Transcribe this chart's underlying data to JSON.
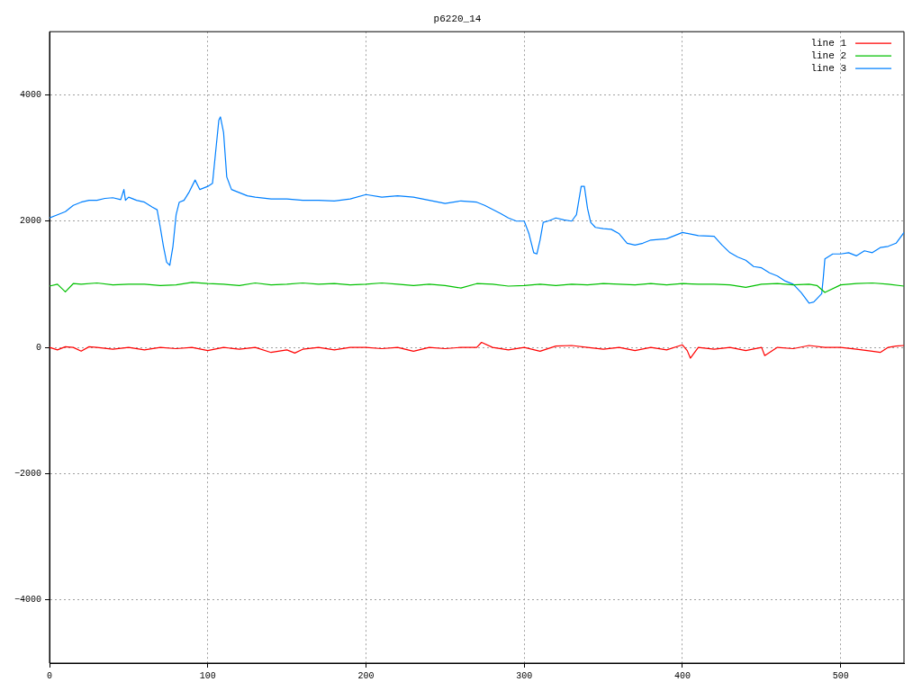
{
  "chart_data": {
    "type": "line",
    "title": "p6220_14",
    "xlim": [
      0,
      540
    ],
    "xticks": [
      0,
      100,
      200,
      300,
      400,
      500
    ],
    "ylim": [
      -5000,
      5000
    ],
    "yticks": [
      -4000,
      -2000,
      0,
      2000,
      4000
    ],
    "grid": true,
    "legend": "top right",
    "marker": "none",
    "line_style": "solid",
    "series": [
      {
        "name": "line 1",
        "color": "#ff0000",
        "x": [
          0,
          5,
          10,
          15,
          20,
          25,
          30,
          40,
          50,
          60,
          70,
          80,
          90,
          100,
          110,
          120,
          130,
          140,
          150,
          155,
          160,
          170,
          180,
          190,
          200,
          210,
          220,
          230,
          240,
          250,
          260,
          270,
          273,
          280,
          290,
          300,
          310,
          320,
          330,
          340,
          350,
          360,
          370,
          380,
          390,
          400,
          403,
          405,
          410,
          420,
          430,
          440,
          450,
          452,
          460,
          470,
          480,
          490,
          500,
          510,
          520,
          525,
          530,
          535,
          540
        ],
        "values": [
          0,
          -40,
          10,
          0,
          -60,
          10,
          0,
          -30,
          0,
          -40,
          0,
          -20,
          0,
          -50,
          0,
          -30,
          0,
          -80,
          -40,
          -90,
          -30,
          0,
          -40,
          0,
          0,
          -20,
          0,
          -60,
          0,
          -20,
          0,
          0,
          80,
          0,
          -40,
          0,
          -60,
          20,
          30,
          0,
          -30,
          0,
          -50,
          0,
          -40,
          40,
          -50,
          -170,
          0,
          -30,
          0,
          -50,
          0,
          -130,
          0,
          -20,
          30,
          0,
          0,
          -30,
          -60,
          -80,
          0,
          20,
          30
        ]
      },
      {
        "name": "line 2",
        "color": "#00c000",
        "x": [
          0,
          5,
          10,
          15,
          20,
          30,
          40,
          50,
          60,
          70,
          80,
          90,
          100,
          110,
          120,
          130,
          140,
          150,
          160,
          170,
          180,
          190,
          200,
          210,
          220,
          230,
          240,
          250,
          260,
          270,
          280,
          290,
          300,
          310,
          320,
          330,
          340,
          350,
          360,
          370,
          380,
          390,
          400,
          410,
          420,
          430,
          440,
          450,
          460,
          470,
          480,
          485,
          490,
          500,
          510,
          520,
          530,
          540
        ],
        "values": [
          970,
          1000,
          880,
          1010,
          1000,
          1020,
          990,
          1000,
          1000,
          980,
          990,
          1030,
          1010,
          1000,
          980,
          1020,
          990,
          1000,
          1020,
          1000,
          1010,
          990,
          1000,
          1020,
          1000,
          980,
          1000,
          980,
          940,
          1010,
          1000,
          970,
          980,
          1000,
          980,
          1000,
          990,
          1010,
          1000,
          990,
          1010,
          990,
          1010,
          1000,
          1000,
          990,
          950,
          1000,
          1010,
          990,
          1000,
          980,
          870,
          990,
          1010,
          1020,
          1000,
          970
        ]
      },
      {
        "name": "line 3",
        "color": "#0080ff",
        "x": [
          0,
          5,
          10,
          15,
          20,
          25,
          30,
          35,
          40,
          45,
          47,
          48,
          50,
          55,
          60,
          65,
          68,
          70,
          72,
          74,
          76,
          78,
          80,
          82,
          85,
          88,
          90,
          92,
          95,
          100,
          103,
          105,
          107,
          108,
          110,
          112,
          115,
          120,
          125,
          130,
          140,
          150,
          160,
          170,
          180,
          190,
          200,
          210,
          220,
          230,
          240,
          250,
          260,
          270,
          275,
          285,
          290,
          295,
          300,
          303,
          306,
          308,
          310,
          312,
          315,
          320,
          325,
          330,
          333,
          336,
          338,
          340,
          342,
          345,
          350,
          355,
          360,
          365,
          370,
          375,
          380,
          390,
          400,
          410,
          420,
          425,
          430,
          435,
          440,
          445,
          450,
          455,
          460,
          465,
          470,
          475,
          480,
          483,
          488,
          489,
          490,
          495,
          500,
          505,
          510,
          515,
          520,
          525,
          530,
          535,
          540
        ],
        "values": [
          2050,
          2100,
          2150,
          2250,
          2300,
          2330,
          2330,
          2360,
          2370,
          2340,
          2500,
          2330,
          2380,
          2330,
          2300,
          2220,
          2180,
          1900,
          1600,
          1350,
          1300,
          1600,
          2100,
          2300,
          2330,
          2450,
          2550,
          2650,
          2500,
          2550,
          2600,
          3100,
          3600,
          3650,
          3400,
          2700,
          2500,
          2450,
          2400,
          2380,
          2350,
          2350,
          2330,
          2330,
          2320,
          2350,
          2420,
          2380,
          2400,
          2380,
          2330,
          2280,
          2320,
          2300,
          2250,
          2120,
          2050,
          2000,
          2000,
          1800,
          1500,
          1480,
          1700,
          1980,
          2000,
          2050,
          2020,
          2000,
          2100,
          2550,
          2550,
          2200,
          1980,
          1900,
          1880,
          1870,
          1800,
          1650,
          1620,
          1650,
          1700,
          1720,
          1820,
          1770,
          1760,
          1620,
          1500,
          1430,
          1380,
          1280,
          1260,
          1180,
          1130,
          1050,
          1000,
          870,
          700,
          720,
          850,
          1100,
          1400,
          1480,
          1480,
          1500,
          1450,
          1530,
          1500,
          1580,
          1600,
          1650,
          1820
        ]
      }
    ]
  }
}
